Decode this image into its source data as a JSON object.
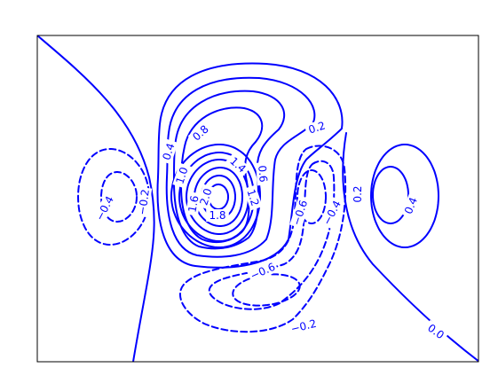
{
  "chart_data": {
    "type": "contour",
    "title": "",
    "xlabel": "",
    "ylabel": "",
    "axis_ticks_visible": false,
    "grid": false,
    "legend": false,
    "line_color": "#0000ff",
    "negative_levels_style": "dashed",
    "positive_levels_style": "solid",
    "levels": [
      -0.6,
      -0.4,
      -0.2,
      0.0,
      0.2,
      0.4,
      0.6,
      0.8,
      1.0,
      1.2,
      1.4,
      1.6,
      1.8,
      2.0
    ],
    "contour_labels": [
      {
        "text": "−0.4"
      },
      {
        "text": "−0.2"
      },
      {
        "text": "0.4"
      },
      {
        "text": "0.8"
      },
      {
        "text": "1.0"
      },
      {
        "text": "1.6"
      },
      {
        "text": "2.0"
      },
      {
        "text": "1.8"
      },
      {
        "text": "1.4"
      },
      {
        "text": "1.2"
      },
      {
        "text": "0.6"
      },
      {
        "text": "0.2"
      },
      {
        "text": "−0.6"
      },
      {
        "text": "−0.4"
      },
      {
        "text": "0.2"
      },
      {
        "text": "0.4"
      },
      {
        "text": "−0.6"
      },
      {
        "text": "−0.2"
      },
      {
        "text": "0.0"
      }
    ]
  }
}
